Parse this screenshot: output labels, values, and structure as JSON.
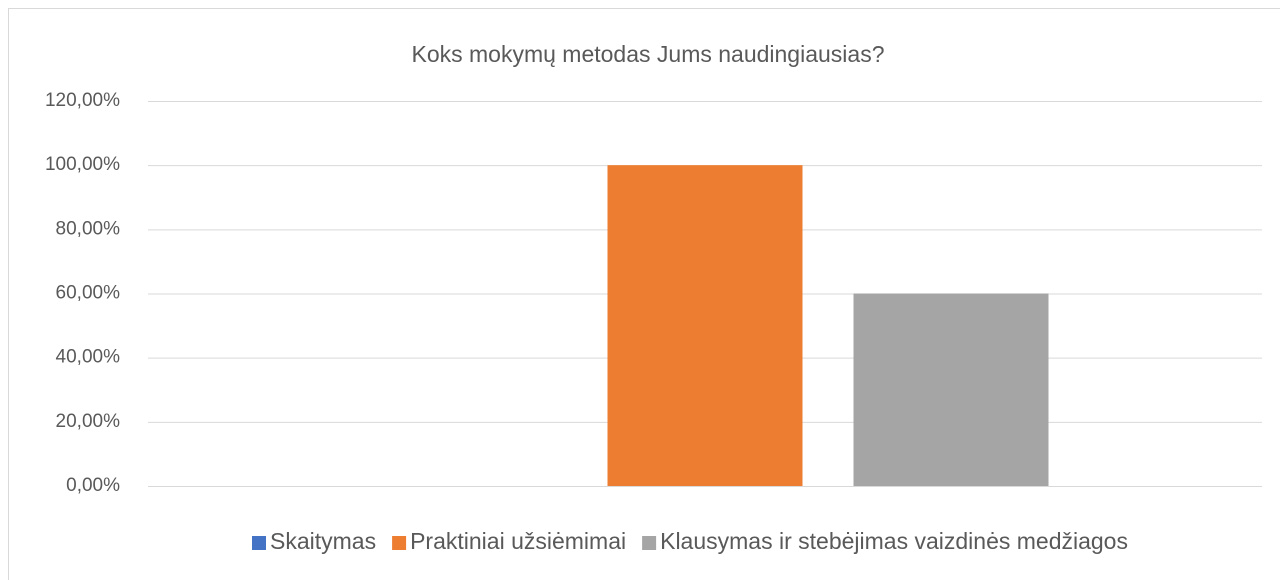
{
  "chart_data": {
    "type": "bar",
    "title": "Koks mokymų metodas Jums naudingiausias?",
    "categories": [
      null
    ],
    "series": [
      {
        "name": "Skaitymas",
        "color": "#4472c4",
        "values": [
          0
        ]
      },
      {
        "name": "Praktiniai užsiėmimai",
        "color": "#ed7d31",
        "values": [
          100
        ]
      },
      {
        "name": "Klausymas ir stebėjimas vaizdinės medžiagos",
        "color": "#a5a5a5",
        "values": [
          60
        ]
      }
    ],
    "ylim": [
      0,
      120
    ],
    "yticks": [
      {
        "value": 0,
        "label": "0,00%"
      },
      {
        "value": 20,
        "label": "20,00%"
      },
      {
        "value": 40,
        "label": "40,00%"
      },
      {
        "value": 60,
        "label": "60,00%"
      },
      {
        "value": 80,
        "label": "80,00%"
      },
      {
        "value": 100,
        "label": "100,00%"
      },
      {
        "value": 120,
        "label": "120,00%"
      }
    ],
    "grid": true,
    "legend": "bottom"
  }
}
